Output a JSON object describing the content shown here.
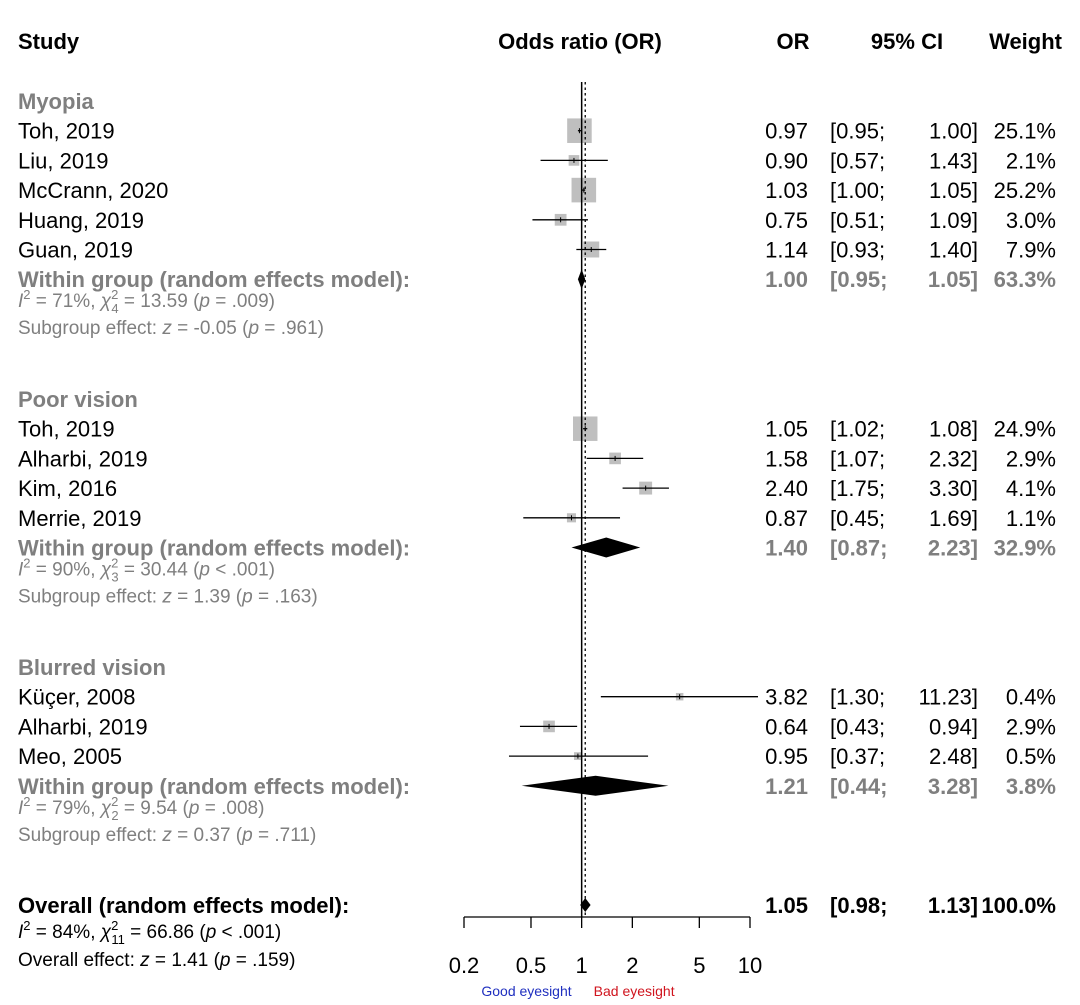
{
  "headers": {
    "study": "Study",
    "plot": "Odds ratio (OR)",
    "or": "OR",
    "ci": "95% CI",
    "weight": "Weight"
  },
  "colors": {
    "group_text": "#7f7f7f",
    "box": "#bfbfbf",
    "good": "#1f2fbf",
    "bad": "#d0141e",
    "ink": "#000000"
  },
  "chart_data": {
    "type": "forest",
    "x_scale": "log",
    "xlim": [
      0.2,
      10
    ],
    "x_ticks": [
      0.2,
      0.5,
      1,
      2,
      5,
      10
    ],
    "x_tick_labels": [
      "0.2",
      "0.5",
      "1",
      "2",
      "5",
      "10"
    ],
    "reference_line": 1,
    "overall_line": 1.05,
    "direction_labels": {
      "left": "Good eyesight",
      "right": "Bad eyesight"
    },
    "groups": [
      {
        "name": "Myopia",
        "studies": [
          {
            "label": "Toh, 2019",
            "or": 0.97,
            "lo": 0.95,
            "hi": 1.0,
            "or_text": "0.97",
            "ci_lo_text": "0.95",
            "ci_hi_text": "1.00",
            "weight": 25.1,
            "weight_text": "25.1%"
          },
          {
            "label": "Liu, 2019",
            "or": 0.9,
            "lo": 0.57,
            "hi": 1.43,
            "or_text": "0.90",
            "ci_lo_text": "0.57",
            "ci_hi_text": "1.43",
            "weight": 2.1,
            "weight_text": "2.1%"
          },
          {
            "label": "McCrann, 2020",
            "or": 1.03,
            "lo": 1.0,
            "hi": 1.05,
            "or_text": "1.03",
            "ci_lo_text": "1.00",
            "ci_hi_text": "1.05",
            "weight": 25.2,
            "weight_text": "25.2%"
          },
          {
            "label": "Huang, 2019",
            "or": 0.75,
            "lo": 0.51,
            "hi": 1.09,
            "or_text": "0.75",
            "ci_lo_text": "0.51",
            "ci_hi_text": "1.09",
            "weight": 3.0,
            "weight_text": "3.0%"
          },
          {
            "label": "Guan, 2019",
            "or": 1.14,
            "lo": 0.93,
            "hi": 1.4,
            "or_text": "1.14",
            "ci_lo_text": "0.93",
            "ci_hi_text": "1.40",
            "weight": 7.9,
            "weight_text": "7.9%"
          }
        ],
        "pooled": {
          "label": "Within group (random effects model):",
          "or": 1.0,
          "lo": 0.95,
          "hi": 1.05,
          "or_text": "1.00",
          "ci_lo_text": "0.95",
          "ci_hi_text": "1.05",
          "weight_text": "63.3%"
        },
        "heterogeneity": {
          "i2": "71%",
          "df": "4",
          "chi2": "13.59",
          "p_op": "=",
          "p": ".009"
        },
        "subgroup_effect": {
          "z": "-0.05",
          "p_op": "=",
          "p": ".961"
        }
      },
      {
        "name": "Poor vision",
        "studies": [
          {
            "label": "Toh, 2019",
            "or": 1.05,
            "lo": 1.02,
            "hi": 1.08,
            "or_text": "1.05",
            "ci_lo_text": "1.02",
            "ci_hi_text": "1.08",
            "weight": 24.9,
            "weight_text": "24.9%"
          },
          {
            "label": "Alharbi, 2019",
            "or": 1.58,
            "lo": 1.07,
            "hi": 2.32,
            "or_text": "1.58",
            "ci_lo_text": "1.07",
            "ci_hi_text": "2.32",
            "weight": 2.9,
            "weight_text": "2.9%"
          },
          {
            "label": "Kim, 2016",
            "or": 2.4,
            "lo": 1.75,
            "hi": 3.3,
            "or_text": "2.40",
            "ci_lo_text": "1.75",
            "ci_hi_text": "3.30",
            "weight": 4.1,
            "weight_text": "4.1%"
          },
          {
            "label": "Merrie, 2019",
            "or": 0.87,
            "lo": 0.45,
            "hi": 1.69,
            "or_text": "0.87",
            "ci_lo_text": "0.45",
            "ci_hi_text": "1.69",
            "weight": 1.1,
            "weight_text": "1.1%"
          }
        ],
        "pooled": {
          "label": "Within group (random effects model):",
          "or": 1.4,
          "lo": 0.87,
          "hi": 2.23,
          "or_text": "1.40",
          "ci_lo_text": "0.87",
          "ci_hi_text": "2.23",
          "weight_text": "32.9%"
        },
        "heterogeneity": {
          "i2": "90%",
          "df": "3",
          "chi2": "30.44",
          "p_op": "<",
          "p": ".001"
        },
        "subgroup_effect": {
          "z": "1.39",
          "p_op": "=",
          "p": ".163"
        }
      },
      {
        "name": "Blurred vision",
        "studies": [
          {
            "label": "Küçer, 2008",
            "or": 3.82,
            "lo": 1.3,
            "hi": 11.23,
            "or_text": "3.82",
            "ci_lo_text": "1.30",
            "ci_hi_text": "11.23",
            "weight": 0.4,
            "weight_text": "0.4%"
          },
          {
            "label": "Alharbi, 2019",
            "or": 0.64,
            "lo": 0.43,
            "hi": 0.94,
            "or_text": "0.64",
            "ci_lo_text": "0.43",
            "ci_hi_text": "0.94",
            "weight": 2.9,
            "weight_text": "2.9%"
          },
          {
            "label": "Meo, 2005",
            "or": 0.95,
            "lo": 0.37,
            "hi": 2.48,
            "or_text": "0.95",
            "ci_lo_text": "0.37",
            "ci_hi_text": "2.48",
            "weight": 0.5,
            "weight_text": "0.5%"
          }
        ],
        "pooled": {
          "label": "Within group (random effects model):",
          "or": 1.21,
          "lo": 0.44,
          "hi": 3.28,
          "or_text": "1.21",
          "ci_lo_text": "0.44",
          "ci_hi_text": "3.28",
          "weight_text": "3.8%"
        },
        "heterogeneity": {
          "i2": "79%",
          "df": "2",
          "chi2": "9.54",
          "p_op": "=",
          "p": ".008"
        },
        "subgroup_effect": {
          "z": "0.37",
          "p_op": "=",
          "p": ".711"
        }
      }
    ],
    "overall": {
      "label": "Overall (random effects model):",
      "or": 1.05,
      "lo": 0.98,
      "hi": 1.13,
      "or_text": "1.05",
      "ci_lo_text": "0.98",
      "ci_hi_text": "1.13",
      "weight_text": "100.0%",
      "heterogeneity": {
        "i2": "84%",
        "df": "11",
        "chi2": "66.86",
        "p_op": "<",
        "p": ".001"
      },
      "effect": {
        "z": "1.41",
        "p_op": "=",
        "p": ".159"
      }
    }
  }
}
